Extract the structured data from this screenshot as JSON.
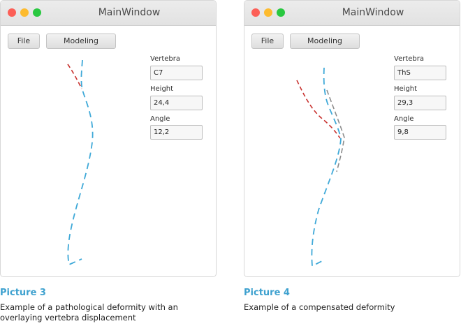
{
  "colors": {
    "spine_blue": "#3fa9d8",
    "displacement_red": "#c8312e",
    "compensation_gray": "#8c8c8c",
    "caption_title": "#3ea1cf"
  },
  "windows": [
    {
      "title": "MainWindow",
      "menu": {
        "file_label": "File",
        "modeling_label": "Modeling"
      },
      "fields": {
        "vertebra_label": "Vertebra",
        "vertebra_value": "C7",
        "height_label": "Height",
        "height_value": "24,4",
        "angle_label": "Angle",
        "angle_value": "12,2"
      }
    },
    {
      "title": "MainWindow",
      "menu": {
        "file_label": "File",
        "modeling_label": "Modeling"
      },
      "fields": {
        "vertebra_label": "Vertebra",
        "vertebra_value": "ThS",
        "height_label": "Height",
        "height_value": "29,3",
        "angle_label": "Angle",
        "angle_value": "9,8"
      }
    }
  ],
  "captions": [
    {
      "title": "Picture 3",
      "text": "Example of a pathological deformity with an overlaying vertebra displacement"
    },
    {
      "title": "Picture 4",
      "text": "Example of a compensated deformity"
    }
  ]
}
